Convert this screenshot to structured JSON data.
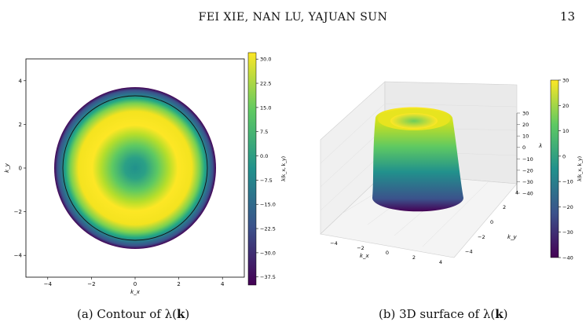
{
  "header": {
    "running_title": "FEI XIE, NAN LU, YAJUAN SUN",
    "page_number": "13"
  },
  "figure_a": {
    "caption_prefix": "(a) Contour of λ(",
    "caption_bold": "k",
    "caption_suffix": ")",
    "xlabel": "k_x",
    "ylabel": "k_y",
    "colorbar_label": "λ(k_x, k_y)"
  },
  "figure_b": {
    "caption_prefix": "(b) 3D surface of λ(",
    "caption_bold": "k",
    "caption_suffix": ")",
    "xlabel": "k_x",
    "ylabel": "k_y",
    "zlabel": "λ",
    "colorbar_label": "λ(k_x, k_y)"
  },
  "chart_data": [
    {
      "type": "heatmap",
      "xlim": [
        -5,
        5
      ],
      "ylim": [
        -5,
        5
      ],
      "x_ticks": [
        "−4",
        "−2",
        "0",
        "2",
        "4"
      ],
      "y_ticks": [
        "4",
        "2",
        "0",
        "−2",
        "−4"
      ],
      "disk_radius": 3.7,
      "zero_contour_radius": 3.3,
      "center_value": 0,
      "ring_max_value": 32,
      "ring_max_radius": 2.0,
      "edge_value": -40,
      "colorbar_ticks": [
        "30.0",
        "22.5",
        "15.0",
        "7.5",
        "0.0",
        "−7.5",
        "−15.0",
        "−22.5",
        "−30.0",
        "−37.5"
      ],
      "colorbar_range": [
        -40,
        32
      ],
      "colormap": [
        "#440154",
        "#3b528b",
        "#21918c",
        "#5ec962",
        "#fde725"
      ]
    },
    {
      "type": "surface3d",
      "x_ticks": [
        "−4",
        "−2",
        "0",
        "2",
        "4"
      ],
      "y_ticks": [
        "4",
        "2",
        "0",
        "−2",
        "−4"
      ],
      "z_ticks": [
        "30",
        "20",
        "10",
        "0",
        "−10",
        "−20",
        "−30",
        "−40"
      ],
      "zlim": [
        -40,
        30
      ],
      "colorbar_ticks": [
        "30",
        "20",
        "10",
        "0",
        "−10",
        "−20",
        "−30",
        "−40"
      ],
      "colorbar_range": [
        -40,
        30
      ],
      "colormap": [
        "#440154",
        "#3b528b",
        "#21918c",
        "#5ec962",
        "#fde725"
      ]
    }
  ]
}
